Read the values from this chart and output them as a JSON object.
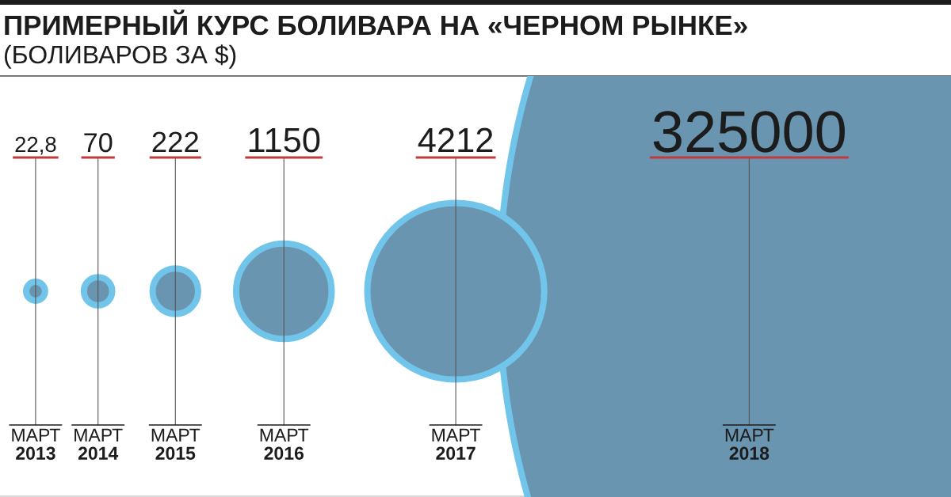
{
  "chart_data": {
    "type": "other",
    "title": "ПРИМЕРНЫЙ КУРС БОЛИВАРА НА «ЧЕРНОМ РЫНКЕ»",
    "subtitle": "(БОЛИВАРОВ ЗА $)",
    "categories": [
      "МАРТ\n2013",
      "МАРТ\n2014",
      "МАРТ\n2015",
      "МАРТ\n2016",
      "МАРТ\n2017",
      "МАРТ\n2018"
    ],
    "values": [
      22.8,
      70,
      222,
      1150,
      4212,
      325000
    ],
    "value_labels": [
      "22,8",
      "70",
      "222",
      "1150",
      "4212",
      "325000"
    ],
    "color": "#6a95b0"
  }
}
